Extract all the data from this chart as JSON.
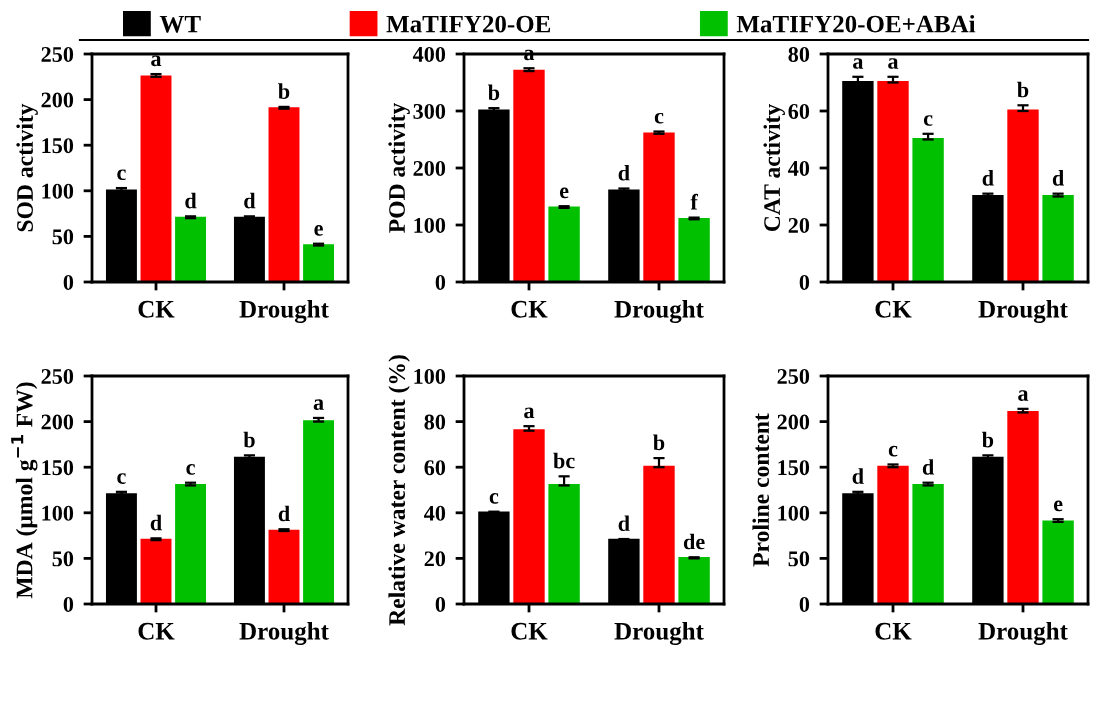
{
  "chart_data": [
    {
      "type": "bar",
      "ylabel": "SOD activity",
      "categories": [
        "CK",
        "Drought"
      ],
      "ylim": [
        0,
        250
      ],
      "yticks": [
        0,
        50,
        100,
        150,
        200,
        250
      ],
      "legend": "top",
      "grid": false,
      "series": [
        {
          "name": "WT",
          "color": "#000000",
          "values": [
            100,
            70
          ],
          "errors": [
            3,
            2
          ],
          "value_labels": [
            "c",
            "d"
          ]
        },
        {
          "name": "MaTIFY20-OE",
          "color": "#ff0000",
          "values": [
            225,
            190
          ],
          "errors": [
            3,
            2
          ],
          "value_labels": [
            "a",
            "b"
          ]
        },
        {
          "name": "MaTIFY20-OE+ABAi",
          "color": "#00c000",
          "values": [
            70,
            40
          ],
          "errors": [
            2,
            2
          ],
          "value_labels": [
            "d",
            "e"
          ]
        }
      ]
    },
    {
      "type": "bar",
      "ylabel": "POD activity",
      "categories": [
        "CK",
        "Drought"
      ],
      "ylim": [
        0,
        400
      ],
      "yticks": [
        0,
        100,
        200,
        300,
        400
      ],
      "grid": false,
      "series": [
        {
          "color": "#000000",
          "values": [
            300,
            160
          ],
          "errors": [
            5,
            4
          ],
          "value_labels": [
            "b",
            "d"
          ]
        },
        {
          "color": "#ff0000",
          "values": [
            370,
            260
          ],
          "errors": [
            5,
            4
          ],
          "value_labels": [
            "a",
            "c"
          ]
        },
        {
          "color": "#00c000",
          "values": [
            130,
            110
          ],
          "errors": [
            3,
            3
          ],
          "value_labels": [
            "e",
            "f"
          ]
        }
      ]
    },
    {
      "type": "bar",
      "ylabel": "CAT activity",
      "categories": [
        "CK",
        "Drought"
      ],
      "ylim": [
        0,
        80
      ],
      "yticks": [
        0,
        20,
        40,
        60,
        80
      ],
      "grid": false,
      "series": [
        {
          "color": "#000000",
          "values": [
            70,
            30
          ],
          "errors": [
            2,
            1
          ],
          "value_labels": [
            "a",
            "d"
          ]
        },
        {
          "color": "#ff0000",
          "values": [
            70,
            60
          ],
          "errors": [
            2,
            2
          ],
          "value_labels": [
            "a",
            "b"
          ]
        },
        {
          "color": "#00c000",
          "values": [
            50,
            30
          ],
          "errors": [
            2,
            1
          ],
          "value_labels": [
            "c",
            "d"
          ]
        }
      ]
    },
    {
      "type": "bar",
      "ylabel": "MDA (μmol g$^{−1}$ FW)",
      "categories": [
        "CK",
        "Drought"
      ],
      "ylim": [
        0,
        250
      ],
      "yticks": [
        0,
        50,
        100,
        150,
        200,
        250
      ],
      "grid": false,
      "series": [
        {
          "color": "#000000",
          "values": [
            120,
            160
          ],
          "errors": [
            3,
            3
          ],
          "value_labels": [
            "c",
            "b"
          ]
        },
        {
          "color": "#ff0000",
          "values": [
            70,
            80
          ],
          "errors": [
            2,
            2
          ],
          "value_labels": [
            "d",
            "d"
          ]
        },
        {
          "color": "#00c000",
          "values": [
            130,
            200
          ],
          "errors": [
            3,
            4
          ],
          "value_labels": [
            "c",
            "a"
          ]
        }
      ]
    },
    {
      "type": "bar",
      "ylabel": "Relative water content (%)",
      "categories": [
        "CK",
        "Drought"
      ],
      "ylim": [
        0,
        100
      ],
      "yticks": [
        0,
        20,
        40,
        60,
        80,
        100
      ],
      "grid": false,
      "series": [
        {
          "color": "#000000",
          "values": [
            40,
            28
          ],
          "errors": [
            0.5,
            0.5
          ],
          "value_labels": [
            "c",
            "d"
          ]
        },
        {
          "color": "#ff0000",
          "values": [
            76,
            60
          ],
          "errors": [
            2,
            4
          ],
          "value_labels": [
            "a",
            "b"
          ]
        },
        {
          "color": "#00c000",
          "values": [
            52,
            20
          ],
          "errors": [
            4,
            0.5
          ],
          "value_labels": [
            "bc",
            "de"
          ]
        }
      ]
    },
    {
      "type": "bar",
      "ylabel": "Proline content",
      "categories": [
        "CK",
        "Drought"
      ],
      "ylim": [
        0,
        250
      ],
      "yticks": [
        0,
        50,
        100,
        150,
        200,
        250
      ],
      "grid": false,
      "series": [
        {
          "color": "#000000",
          "values": [
            120,
            160
          ],
          "errors": [
            3,
            3
          ],
          "value_labels": [
            "d",
            "b"
          ]
        },
        {
          "color": "#ff0000",
          "values": [
            150,
            210
          ],
          "errors": [
            3,
            4
          ],
          "value_labels": [
            "c",
            "a"
          ]
        },
        {
          "color": "#00c000",
          "values": [
            130,
            90
          ],
          "errors": [
            3,
            3
          ],
          "value_labels": [
            "d",
            "e"
          ]
        }
      ]
    }
  ]
}
